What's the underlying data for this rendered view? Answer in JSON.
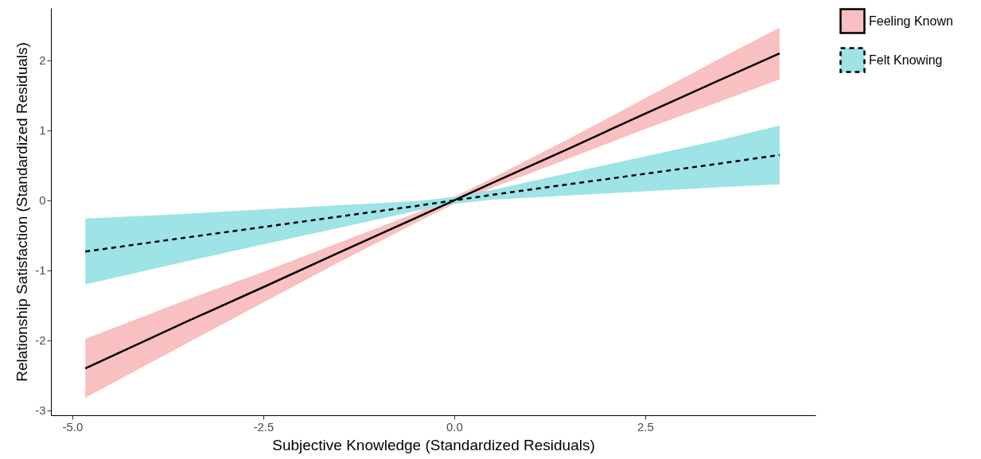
{
  "chart_data": {
    "type": "line",
    "xlabel": "Subjective Knowledge (Standardized Residuals)",
    "ylabel": "Relationship Satisfaction (Standardized Residuals)",
    "x": [
      -4.83,
      -3.5,
      -2.5,
      -1.5,
      -0.5,
      0,
      0.5,
      1.5,
      2.5,
      3.5,
      4.26
    ],
    "series": [
      {
        "name": "Feeling Known",
        "color": "#000000",
        "line_style": "solid",
        "values": [
          -2.4,
          -1.73,
          -1.24,
          -0.74,
          -0.25,
          0,
          0.25,
          0.74,
          1.24,
          1.73,
          2.1
        ],
        "lower": [
          -2.82,
          -2.04,
          -1.46,
          -0.88,
          -0.32,
          -0.05,
          0.18,
          0.6,
          1.02,
          1.42,
          1.73
        ],
        "upper": [
          -1.98,
          -1.42,
          -1.02,
          -0.6,
          -0.18,
          0.05,
          0.32,
          0.88,
          1.46,
          2.04,
          2.47
        ]
      },
      {
        "name": "Felt Knowing",
        "color": "#000000",
        "line_style": "dashed",
        "values": [
          -0.73,
          -0.53,
          -0.38,
          -0.23,
          -0.08,
          0,
          0.08,
          0.23,
          0.38,
          0.53,
          0.65
        ],
        "lower": [
          -1.2,
          -0.87,
          -0.63,
          -0.39,
          -0.15,
          -0.05,
          0.01,
          0.07,
          0.13,
          0.19,
          0.23
        ],
        "upper": [
          -0.26,
          -0.19,
          -0.13,
          -0.07,
          -0.01,
          0.05,
          0.15,
          0.39,
          0.63,
          0.87,
          1.07
        ]
      }
    ],
    "xlim": [
      -5.28,
      4.73
    ],
    "xticks": [
      {
        "value": -5,
        "label": "-5.0"
      },
      -2.5,
      {
        "value": 0,
        "label": "0.0"
      },
      2.5
    ],
    "ylim": [
      -3.07,
      2.75
    ],
    "yticks": [
      -3,
      -2,
      -1,
      0,
      1,
      2
    ],
    "grid": false,
    "legend": "right"
  }
}
